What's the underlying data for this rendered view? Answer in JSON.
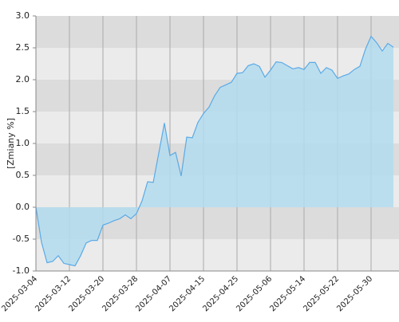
{
  "chart_data": {
    "type": "area",
    "y_label": "[Zmiany %]",
    "x": [
      "2025-03-04",
      "2025-03-05",
      "2025-03-06",
      "2025-03-07",
      "2025-03-10",
      "2025-03-11",
      "2025-03-12",
      "2025-03-13",
      "2025-03-14",
      "2025-03-17",
      "2025-03-18",
      "2025-03-19",
      "2025-03-20",
      "2025-03-21",
      "2025-03-24",
      "2025-03-25",
      "2025-03-26",
      "2025-03-27",
      "2025-03-28",
      "2025-03-31",
      "2025-04-01",
      "2025-04-02",
      "2025-04-03",
      "2025-04-04",
      "2025-04-07",
      "2025-04-08",
      "2025-04-09",
      "2025-04-10",
      "2025-04-11",
      "2025-04-14",
      "2025-04-15",
      "2025-04-16",
      "2025-04-17",
      "2025-04-22",
      "2025-04-23",
      "2025-04-24",
      "2025-04-25",
      "2025-04-28",
      "2025-04-29",
      "2025-04-30",
      "2025-05-02",
      "2025-05-05",
      "2025-05-06",
      "2025-05-07",
      "2025-05-08",
      "2025-05-09",
      "2025-05-12",
      "2025-05-13",
      "2025-05-14",
      "2025-05-15",
      "2025-05-16",
      "2025-05-19",
      "2025-05-20",
      "2025-05-21",
      "2025-05-22",
      "2025-05-23",
      "2025-05-26",
      "2025-05-27",
      "2025-05-28",
      "2025-05-29",
      "2025-05-30",
      "2025-06-02",
      "2025-06-03",
      "2025-06-04",
      "2025-06-05"
    ],
    "values": [
      0.0,
      -0.55,
      -0.87,
      -0.85,
      -0.76,
      -0.88,
      -0.9,
      -0.92,
      -0.76,
      -0.56,
      -0.52,
      -0.52,
      -0.28,
      -0.25,
      -0.21,
      -0.18,
      -0.12,
      -0.18,
      -0.1,
      0.1,
      0.4,
      0.39,
      0.85,
      1.32,
      0.81,
      0.86,
      0.49,
      1.1,
      1.09,
      1.33,
      1.47,
      1.57,
      1.75,
      1.88,
      1.92,
      1.96,
      2.1,
      2.11,
      2.22,
      2.25,
      2.21,
      2.04,
      2.15,
      2.28,
      2.27,
      2.22,
      2.17,
      2.19,
      2.16,
      2.27,
      2.27,
      2.1,
      2.19,
      2.15,
      2.02,
      2.06,
      2.09,
      2.16,
      2.21,
      2.48,
      2.68,
      2.58,
      2.45,
      2.57,
      2.51
    ],
    "color": "#5aaae6",
    "fill": "#b3dcef",
    "ylim": [
      -1.0,
      3.0
    ],
    "yticks": [
      {
        "value": -1,
        "label": "-1.0"
      },
      {
        "value": -0.5,
        "label": "-0.5"
      },
      {
        "value": 0,
        "label": "0.0"
      },
      {
        "value": 0.5,
        "label": "0.5"
      },
      {
        "value": 1,
        "label": "1.0"
      },
      {
        "value": 1.5,
        "label": "1.5"
      },
      {
        "value": 2,
        "label": "2.0"
      },
      {
        "value": 2.5,
        "label": "2.5"
      },
      {
        "value": 3,
        "label": "3.0"
      }
    ],
    "xticks": [
      "2025-03-04",
      "2025-03-12",
      "2025-03-20",
      "2025-03-28",
      "2025-04-07",
      "2025-04-15",
      "2025-04-25",
      "2025-05-06",
      "2025-05-14",
      "2025-05-22",
      "2025-05-30"
    ],
    "bands": [
      "#dcdcdc",
      "#ebebeb"
    ],
    "grid": true
  }
}
